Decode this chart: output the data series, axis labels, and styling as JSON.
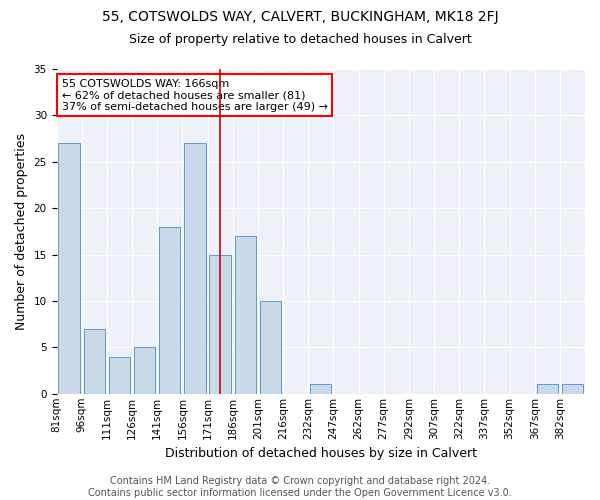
{
  "title1": "55, COTSWOLDS WAY, CALVERT, BUCKINGHAM, MK18 2FJ",
  "title2": "Size of property relative to detached houses in Calvert",
  "xlabel": "Distribution of detached houses by size in Calvert",
  "ylabel": "Number of detached properties",
  "bins": [
    "81sqm",
    "96sqm",
    "111sqm",
    "126sqm",
    "141sqm",
    "156sqm",
    "171sqm",
    "186sqm",
    "201sqm",
    "216sqm",
    "232sqm",
    "247sqm",
    "262sqm",
    "277sqm",
    "292sqm",
    "307sqm",
    "322sqm",
    "337sqm",
    "352sqm",
    "367sqm",
    "382sqm"
  ],
  "values": [
    27,
    7,
    4,
    5,
    18,
    27,
    15,
    17,
    10,
    0,
    1,
    0,
    0,
    0,
    0,
    0,
    0,
    0,
    0,
    1,
    1
  ],
  "bar_color": "#c9d9ea",
  "bar_edge_color": "#5b9bd5",
  "red_line_bin_index": 6,
  "property_size": 166,
  "annotation_text": "55 COTSWOLDS WAY: 166sqm\n← 62% of detached houses are smaller (81)\n37% of semi-detached houses are larger (49) →",
  "annotation_box_color": "white",
  "annotation_box_edge_color": "red",
  "red_line_color": "#cc0000",
  "ylim": [
    0,
    35
  ],
  "yticks": [
    0,
    5,
    10,
    15,
    20,
    25,
    30,
    35
  ],
  "footnote": "Contains HM Land Registry data © Crown copyright and database right 2024.\nContains public sector information licensed under the Open Government Licence v3.0.",
  "title1_fontsize": 10,
  "title2_fontsize": 9,
  "xlabel_fontsize": 9,
  "ylabel_fontsize": 9,
  "tick_fontsize": 7.5,
  "annotation_fontsize": 8,
  "footnote_fontsize": 7,
  "bg_color": "#eef2f8"
}
